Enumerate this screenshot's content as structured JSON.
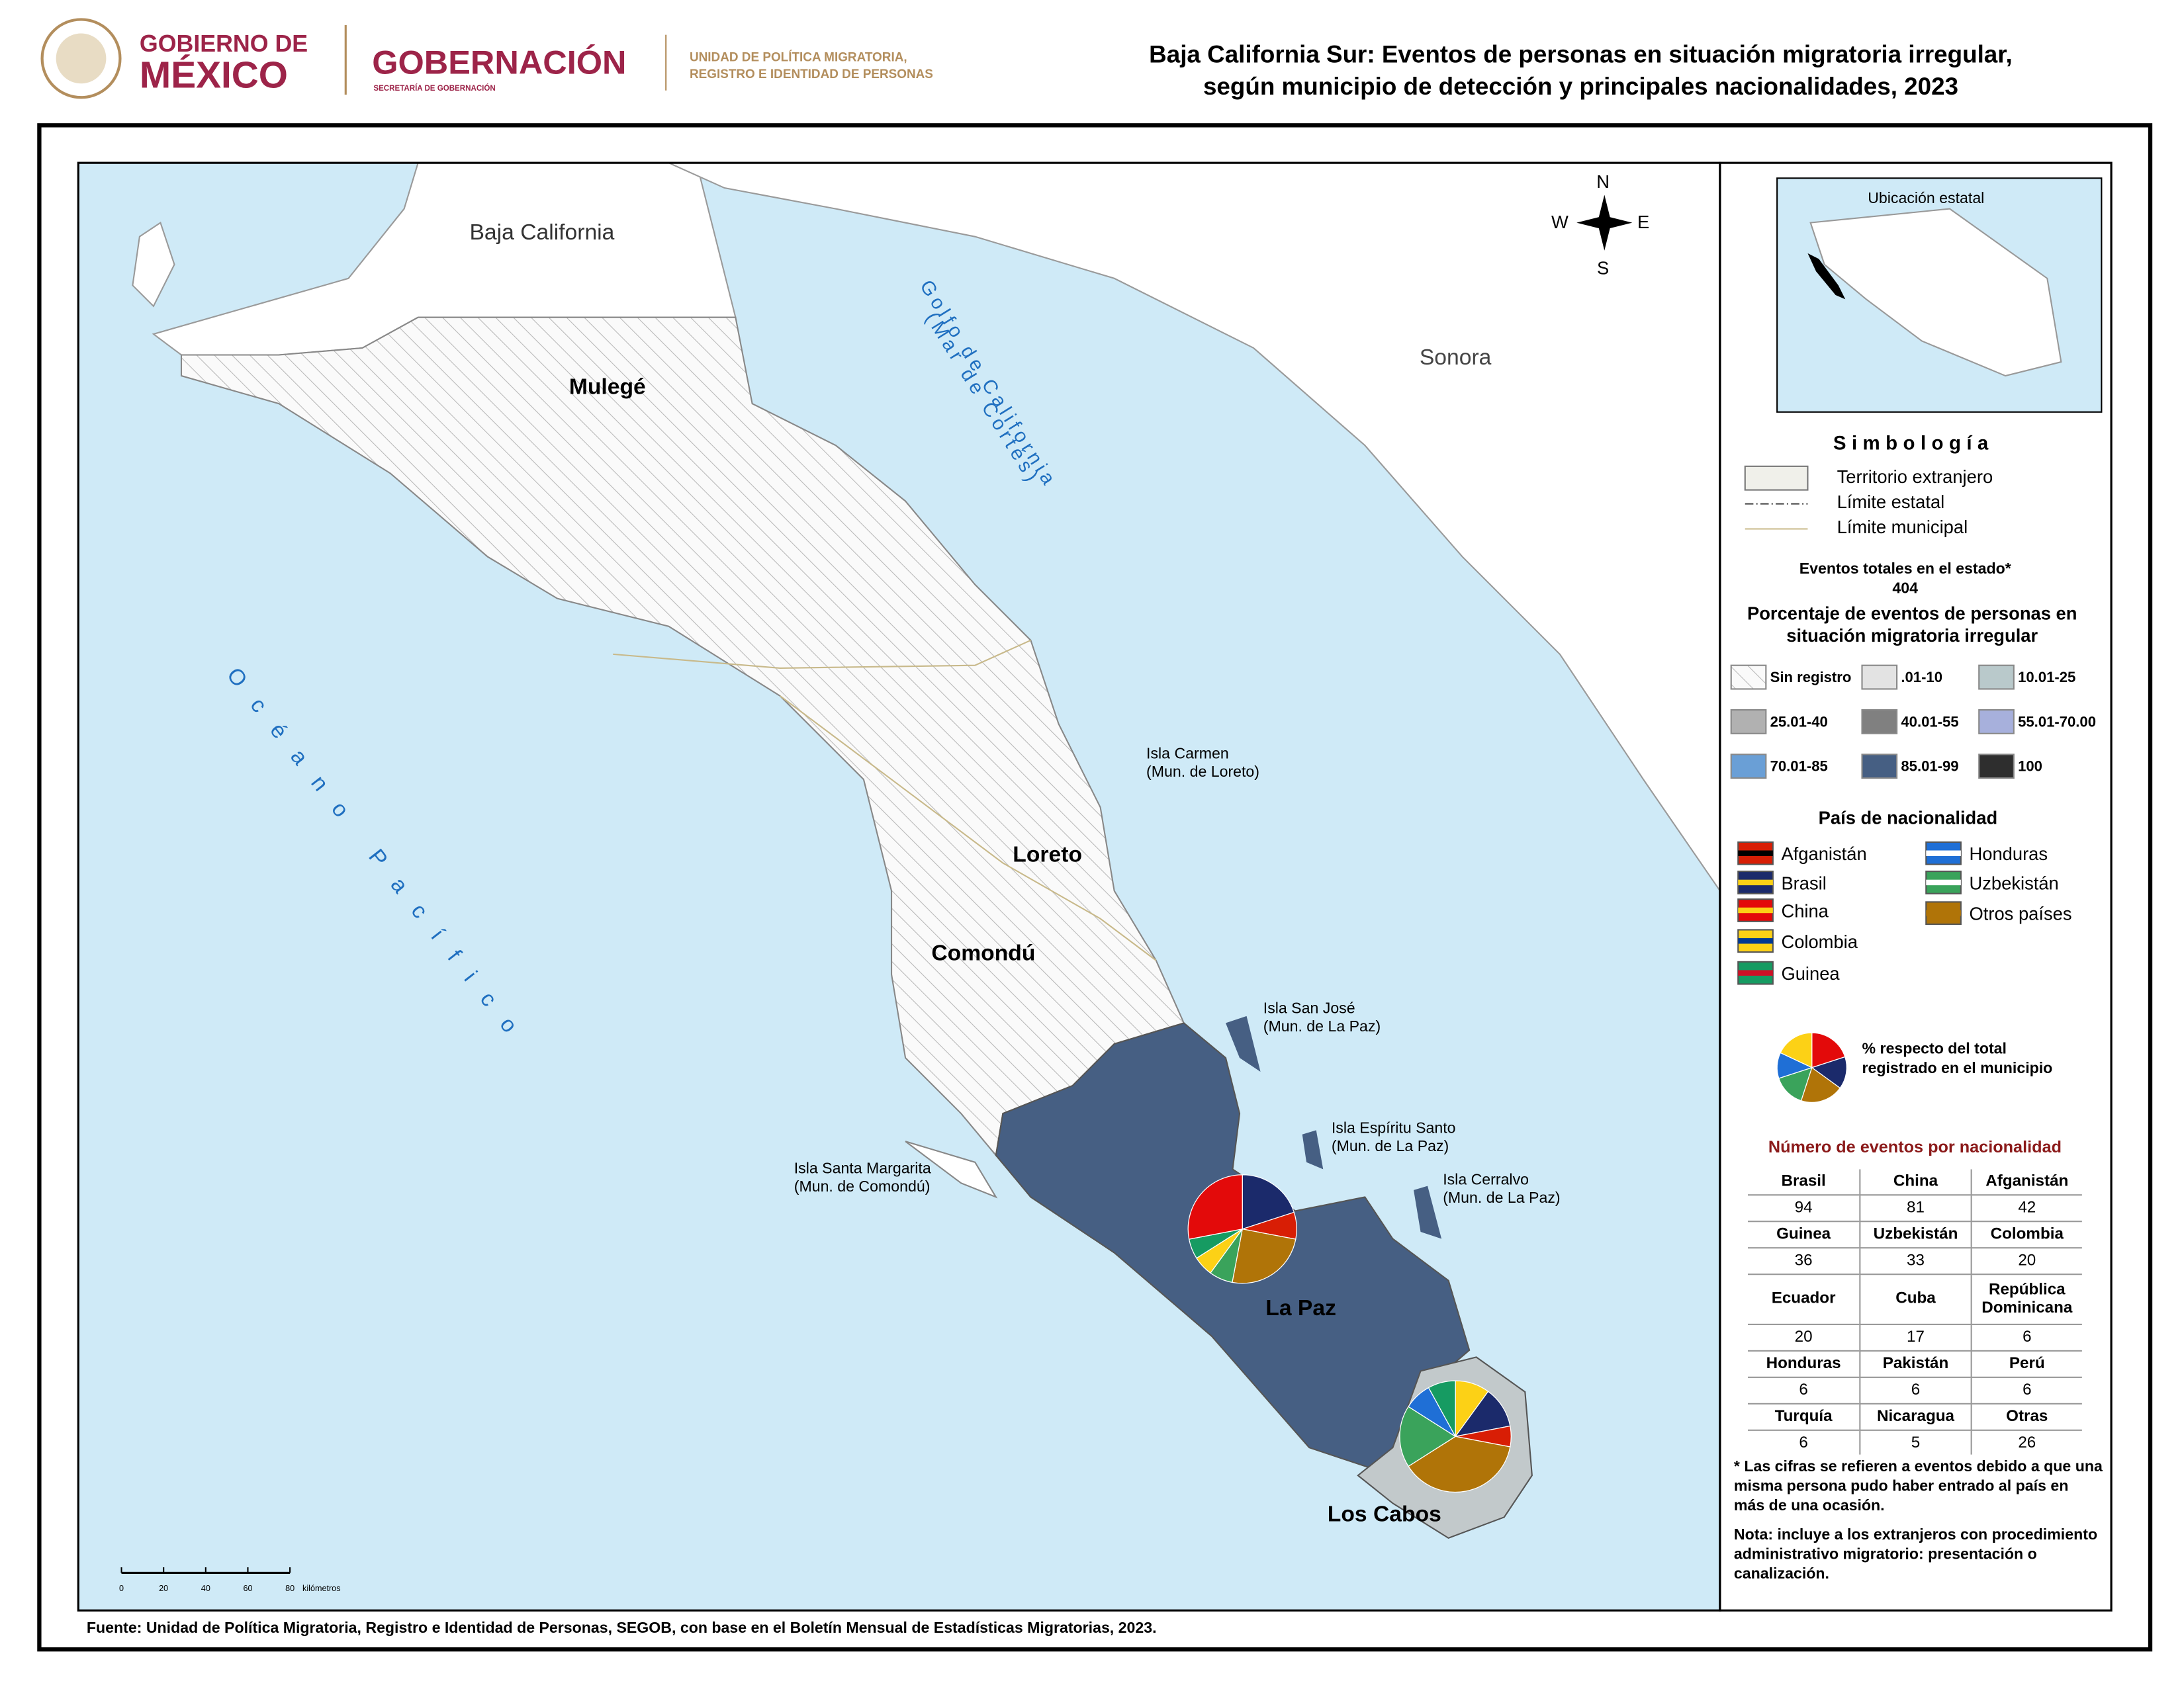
{
  "header": {
    "gov": [
      "GOBIERNO DE",
      "MÉXICO"
    ],
    "dept": "GOBERNACIÓN",
    "dept_sub": "SECRETARÍA DE GOBERNACIÓN",
    "unit": [
      "UNIDAD DE POLÍTICA MIGRATORIA,",
      "REGISTRO E IDENTIDAD DE PERSONAS"
    ],
    "title": [
      "Baja California Sur: Eventos de personas en situación migratoria irregular,",
      "según municipio de detección y principales nacionalidades, 2023"
    ]
  },
  "map": {
    "labels": [
      "Baja California",
      "Sonora",
      "Mulegé",
      "Loreto",
      "Comondú",
      "La Paz",
      "Los Cabos",
      "Golfo de California",
      "(Mar de Cortés)",
      "Océano Pacífico",
      "Isla Carmen",
      "(Mun. de Loreto)",
      "Isla San José",
      "(Mun. de La Paz)",
      "Isla Espíritu Santo",
      "(Mun. de La Paz)",
      "Isla Cerralvo",
      "(Mun. de La Paz)",
      "Isla Santa Margarita",
      "(Mun. de Comondú)"
    ],
    "compass": [
      "N",
      "S",
      "E",
      "W"
    ],
    "scale_ticks": [
      0,
      20,
      40,
      60,
      80
    ],
    "scale_unit": "kilómetros"
  },
  "legend": {
    "inset_title": "Ubicación estatal",
    "title": "Simbología",
    "items": [
      "Territorio extranjero",
      "Límite estatal",
      "Límite municipal"
    ],
    "total_label": "Eventos totales en el estado*",
    "total": 404,
    "pct_title": [
      "Porcentaje de eventos de personas en",
      "situación migratoria irregular"
    ],
    "classes": [
      {
        "label": "Sin registro",
        "color": "#ffffff"
      },
      {
        "label": ".01-10",
        "color": "#e3e3e3"
      },
      {
        "label": "10.01-25",
        "color": "#b9c9cb"
      },
      {
        "label": "25.01-40",
        "color": "#b1b1b1"
      },
      {
        "label": "40.01-55",
        "color": "#808080"
      },
      {
        "label": "55.01-70.00",
        "color": "#a7b0dc"
      },
      {
        "label": "70.01-85",
        "color": "#6a9fd6"
      },
      {
        "label": "85.01-99",
        "color": "#465f83"
      },
      {
        "label": "100",
        "color": "#2e2e2e"
      }
    ],
    "nat_title": "País de nacionalidad",
    "nationalities": [
      {
        "name": "Afganistán",
        "color": "#d81e05"
      },
      {
        "name": "Brasil",
        "color": "#1b2a6b"
      },
      {
        "name": "China",
        "color": "#e30a0a"
      },
      {
        "name": "Colombia",
        "color": "#fcd116"
      },
      {
        "name": "Guinea",
        "color": "#169b62"
      },
      {
        "name": "Honduras",
        "color": "#1f6fd6"
      },
      {
        "name": "Uzbekistán",
        "color": "#3aa35b"
      },
      {
        "name": "Otros países",
        "color": "#b07408"
      }
    ],
    "pie_note": [
      "% respecto del total",
      "registrado en el municipio"
    ]
  },
  "table": {
    "title": "Número de eventos por nacionalidad",
    "rows": [
      [
        "Brasil",
        "China",
        "Afganistán"
      ],
      [
        94,
        81,
        42
      ],
      [
        "Guinea",
        "Uzbekistán",
        "Colombia"
      ],
      [
        36,
        33,
        20
      ],
      [
        "Ecuador",
        "Cuba",
        "República Dominicana"
      ],
      [
        20,
        17,
        6
      ],
      [
        "Honduras",
        "Pakistán",
        "Perú"
      ],
      [
        6,
        6,
        6
      ],
      [
        "Turquía",
        "Nicaragua",
        "Otras"
      ],
      [
        6,
        5,
        26
      ]
    ]
  },
  "notes": {
    "asterisk": "* Las cifras se refieren a eventos debido a que una misma persona pudo haber entrado al país en más de una ocasión.",
    "nota": "Nota: incluye a los extranjeros con procedimiento administrativo migratorio: presentación o canalización."
  },
  "source": "Fuente: Unidad de Política Migratoria, Registro e Identidad de Personas, SEGOB, con base en el Boletín Mensual de Estadísticas Migratorias, 2023."
}
